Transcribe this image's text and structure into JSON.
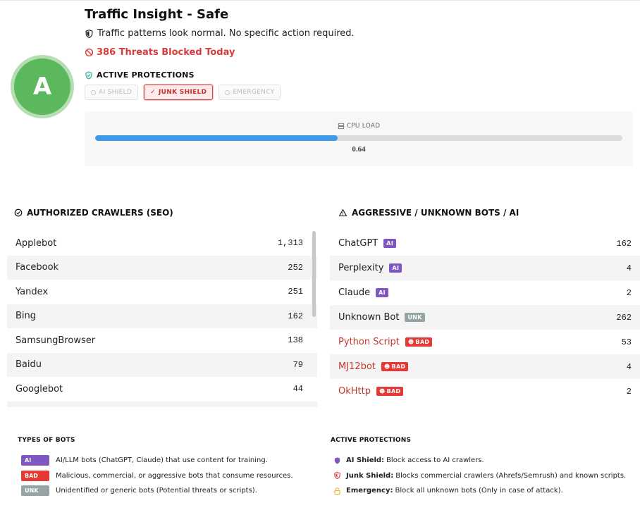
{
  "header": {
    "grade": "A",
    "title": "Traffic Insight - Safe",
    "subtitle": "Traffic patterns look normal. No specific action required.",
    "threats": "386 Threats Blocked Today"
  },
  "protections": {
    "heading": "ACTIVE PROTECTIONS",
    "chips": [
      {
        "label": "AI SHIELD",
        "active": false
      },
      {
        "label": "JUNK SHIELD",
        "active": true
      },
      {
        "label": "EMERGENCY",
        "active": false
      }
    ]
  },
  "cpu": {
    "label": "CPU LOAD",
    "value": "0.64",
    "fill_fraction": 0.46
  },
  "authorized": {
    "heading": "AUTHORIZED CRAWLERS (SEO)",
    "rows": [
      {
        "name": "Applebot",
        "count": "1,313"
      },
      {
        "name": "Facebook",
        "count": "252"
      },
      {
        "name": "Yandex",
        "count": "251"
      },
      {
        "name": "Bing",
        "count": "162"
      },
      {
        "name": "SamsungBrowser",
        "count": "138"
      },
      {
        "name": "Baidu",
        "count": "79"
      },
      {
        "name": "Googlebot",
        "count": "44"
      }
    ]
  },
  "aggressive": {
    "heading": "AGGRESSIVE / UNKNOWN BOTS / AI",
    "rows": [
      {
        "name": "ChatGPT",
        "badge": "AI",
        "type": "ai",
        "count": "162"
      },
      {
        "name": "Perplexity",
        "badge": "AI",
        "type": "ai",
        "count": "4"
      },
      {
        "name": "Claude",
        "badge": "AI",
        "type": "ai",
        "count": "2"
      },
      {
        "name": "Unknown Bot",
        "badge": "UNK",
        "type": "unk",
        "count": "262"
      },
      {
        "name": "Python Script",
        "badge": "BAD",
        "type": "bad",
        "count": "53"
      },
      {
        "name": "MJ12bot",
        "badge": "BAD",
        "type": "bad",
        "count": "4"
      },
      {
        "name": "OkHttp",
        "badge": "BAD",
        "type": "bad",
        "count": "2"
      }
    ]
  },
  "legend_types": {
    "heading": "TYPES OF BOTS",
    "items": [
      {
        "badge": "AI",
        "type": "ai",
        "text": "AI/LLM bots (ChatGPT, Claude) that use content for training."
      },
      {
        "badge": "BAD",
        "type": "bad",
        "text": "Malicious, commercial, or aggressive bots that consume resources."
      },
      {
        "badge": "UNK",
        "type": "unk",
        "text": "Unidentified or generic bots (Potential threats or scripts)."
      }
    ]
  },
  "legend_protections": {
    "heading": "ACTIVE PROTECTIONS",
    "items": [
      {
        "icon": "ai-shield-icon",
        "color": "#7e57c2",
        "title": "AI Shield:",
        "text": "Block access to AI crawlers."
      },
      {
        "icon": "junk-shield-icon",
        "color": "#e53935",
        "title": "Junk Shield:",
        "text": "Blocks commercial crawlers (Ahrefs/Semrush) and known scripts."
      },
      {
        "icon": "lock-icon",
        "color": "#f0b429",
        "title": "Emergency:",
        "text": "Block all unknown bots (Only in case of attack)."
      }
    ]
  }
}
